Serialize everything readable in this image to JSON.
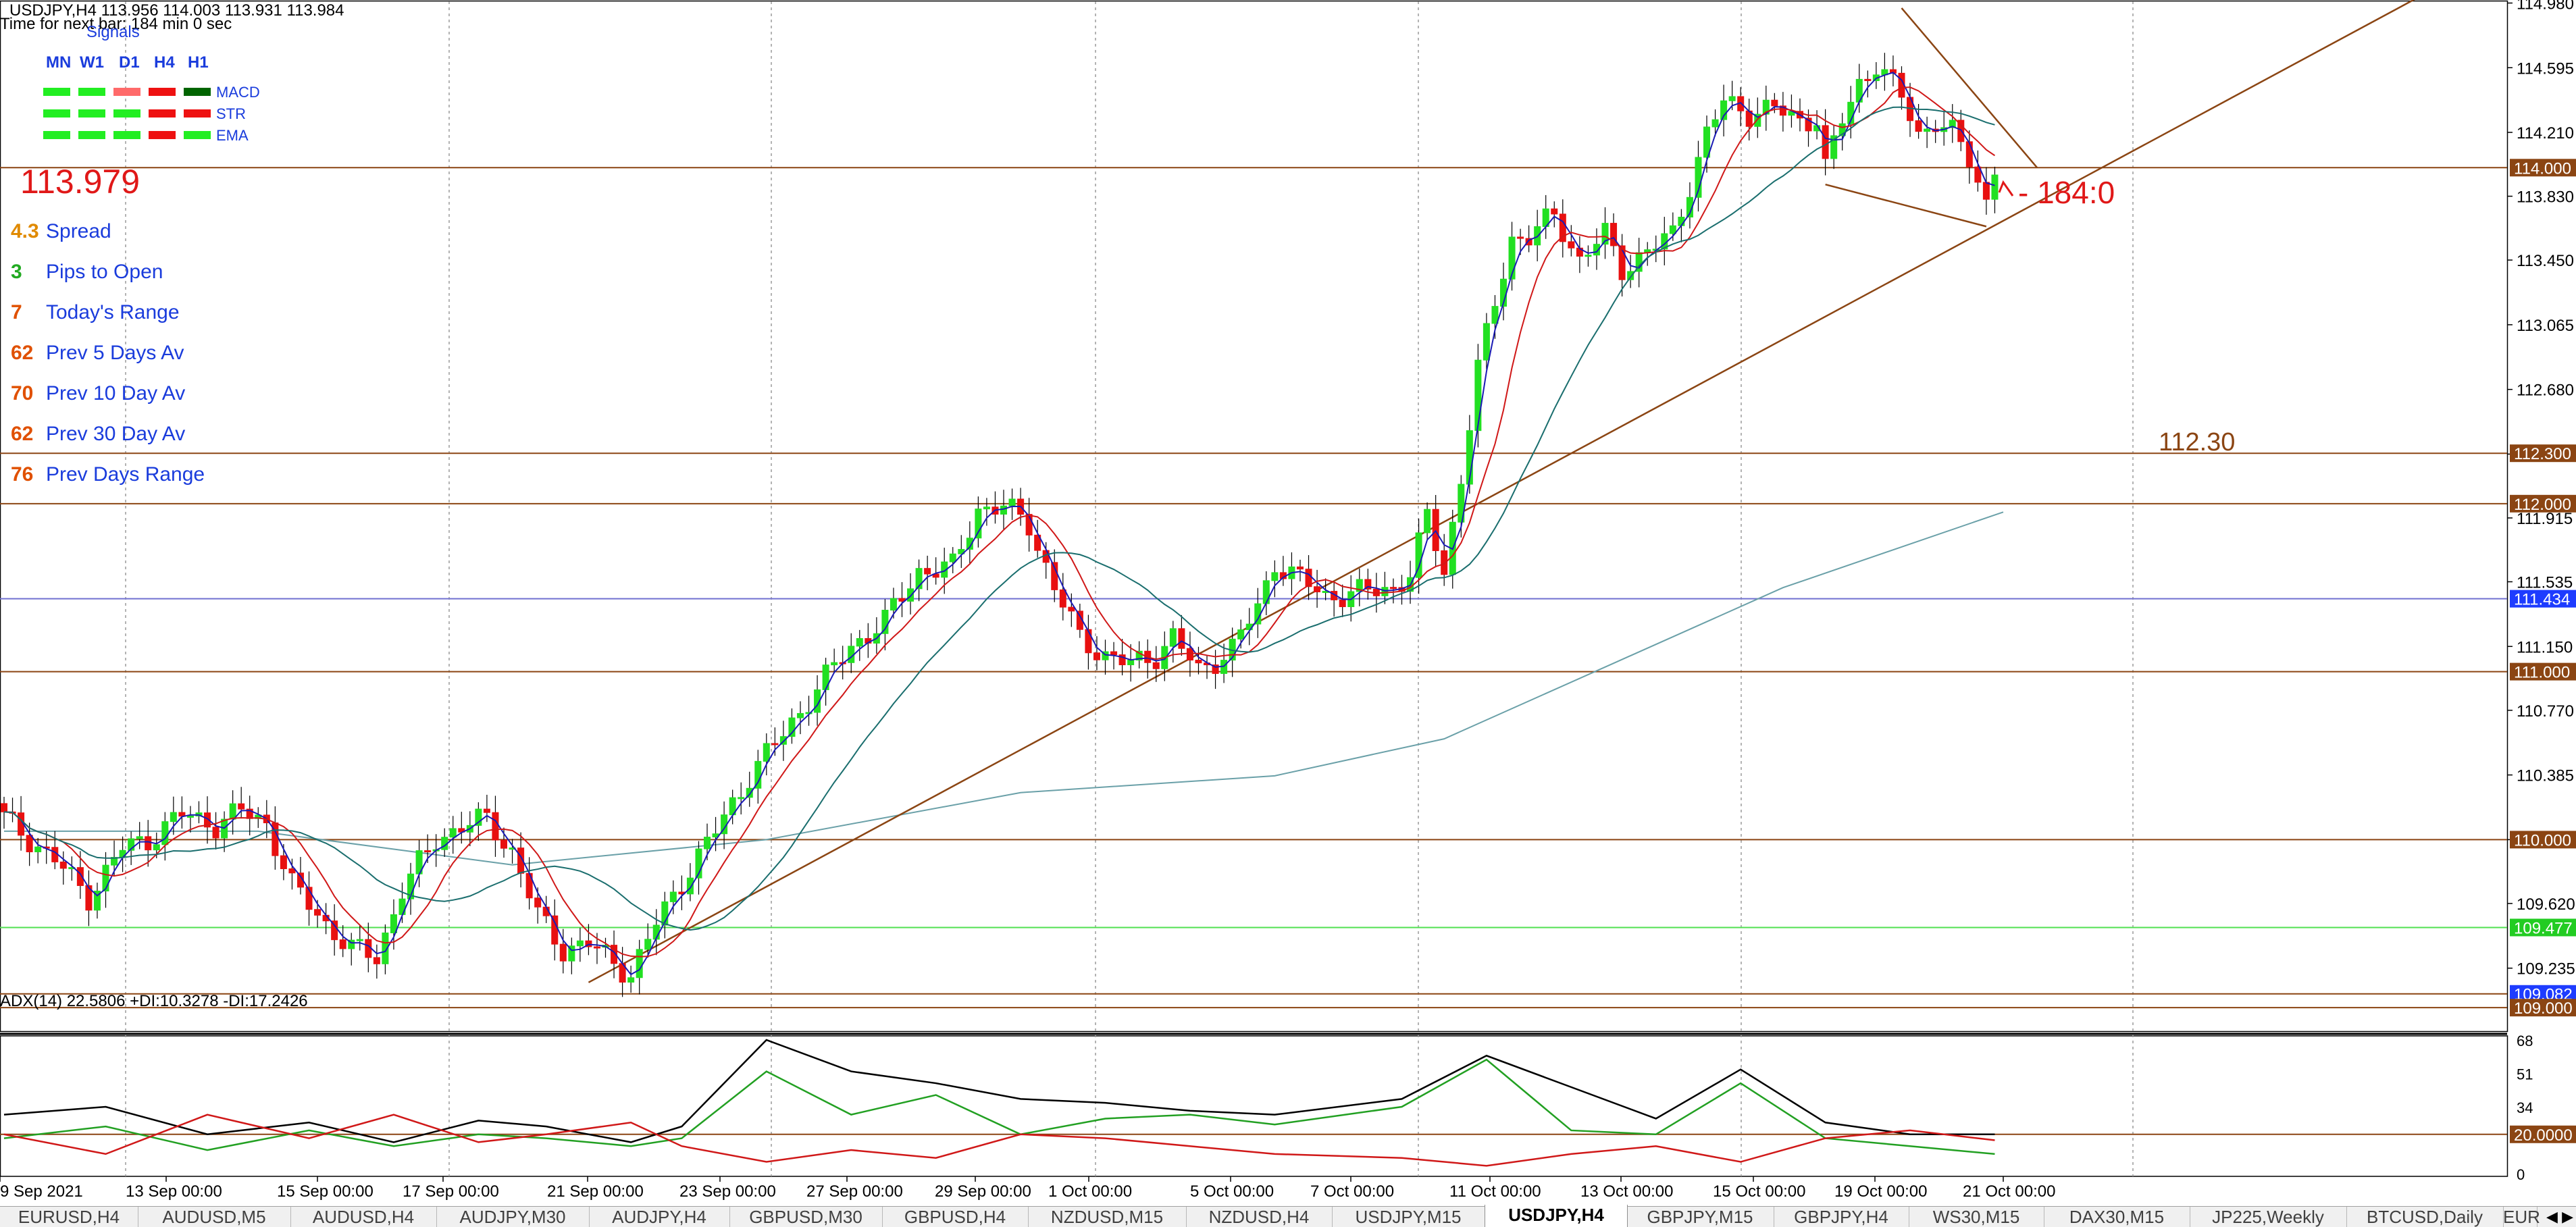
{
  "header": {
    "symbol_line": "USDJPY,H4  113.956 114.003 113.931 113.984",
    "timer": "Time for next bar: 184 min 0 sec"
  },
  "signals": {
    "title": "Signals",
    "timeframes": [
      "MN",
      "W1",
      "D1",
      "H4",
      "H1"
    ],
    "rows": [
      {
        "label": "MACD",
        "colors": [
          "#22ee22",
          "#22ee22",
          "#ff6a6a",
          "#ee1111",
          "#006400"
        ]
      },
      {
        "label": "STR",
        "colors": [
          "#22ee22",
          "#22ee22",
          "#22ee22",
          "#ee1111",
          "#ee1111"
        ]
      },
      {
        "label": "EMA",
        "colors": [
          "#22ee22",
          "#22ee22",
          "#22ee22",
          "#ee1111",
          "#22ee22"
        ]
      }
    ]
  },
  "info_panel": {
    "price": "113.979",
    "rows": [
      {
        "value": "4.3",
        "label": "Spread",
        "value_color": "#e08a00"
      },
      {
        "value": "3",
        "label": "Pips to Open",
        "value_color": "#22aa22"
      },
      {
        "value": "7",
        "label": "Today's Range",
        "value_color": "#e05000"
      },
      {
        "value": "62",
        "label": "Prev 5 Days Av",
        "value_color": "#e05000"
      },
      {
        "value": "70",
        "label": "Prev 10 Day Av",
        "value_color": "#e05000"
      },
      {
        "value": "62",
        "label": "Prev 30 Day Av",
        "value_color": "#e05000"
      },
      {
        "value": "76",
        "label": "Prev Days Range",
        "value_color": "#e05000"
      }
    ]
  },
  "annotations": {
    "countdown": "- 184:0",
    "level_label": "112.30"
  },
  "chart_data": {
    "type": "candlestick",
    "symbol": "USDJPY",
    "timeframe": "H4",
    "ylim": [
      108.88,
      114.99
    ],
    "price_ticks": [
      "114.980",
      "114.595",
      "114.210",
      "113.830",
      "113.450",
      "113.065",
      "112.680",
      "112.295",
      "111.915",
      "111.535",
      "111.150",
      "110.770",
      "110.385",
      "110.000",
      "109.620",
      "109.235"
    ],
    "x_labels": [
      "9 Sep 2021",
      "13 Sep 00:00",
      "15 Sep 00:00",
      "17 Sep 00:00",
      "21 Sep 00:00",
      "23 Sep 00:00",
      "27 Sep 00:00",
      "29 Sep 00:00",
      "1 Oct 00:00",
      "5 Oct 00:00",
      "7 Oct 00:00",
      "11 Oct 00:00",
      "13 Oct 00:00",
      "15 Oct 00:00",
      "19 Oct 00:00",
      "21 Oct 00:00"
    ],
    "close_path": [
      [
        0,
        110.13
      ],
      [
        6,
        109.88
      ],
      [
        10,
        109.66
      ],
      [
        14,
        109.95
      ],
      [
        17,
        110.0
      ],
      [
        21,
        110.15
      ],
      [
        25,
        110.09
      ],
      [
        28,
        110.17
      ],
      [
        31,
        110.1
      ],
      [
        34,
        109.73
      ],
      [
        38,
        109.5
      ],
      [
        41,
        109.35
      ],
      [
        44,
        109.3
      ],
      [
        47,
        109.7
      ],
      [
        51,
        110.0
      ],
      [
        54,
        110.08
      ],
      [
        57,
        110.12
      ],
      [
        60,
        109.93
      ],
      [
        63,
        109.55
      ],
      [
        66,
        109.35
      ],
      [
        69,
        109.38
      ],
      [
        72,
        109.27
      ],
      [
        74,
        109.2
      ],
      [
        77,
        109.5
      ],
      [
        80,
        109.75
      ],
      [
        84,
        110.05
      ],
      [
        88,
        110.38
      ],
      [
        92,
        110.63
      ],
      [
        96,
        110.9
      ],
      [
        100,
        111.15
      ],
      [
        104,
        111.3
      ],
      [
        108,
        111.6
      ],
      [
        112,
        111.62
      ],
      [
        115,
        111.97
      ],
      [
        118,
        111.98
      ],
      [
        121,
        111.88
      ],
      [
        124,
        111.5
      ],
      [
        127,
        111.2
      ],
      [
        130,
        111.1
      ],
      [
        133,
        111.04
      ],
      [
        136,
        111.1
      ],
      [
        138,
        111.21
      ],
      [
        141,
        111.0
      ],
      [
        145,
        111.14
      ],
      [
        148,
        111.38
      ],
      [
        150,
        111.65
      ],
      [
        153,
        111.55
      ],
      [
        156,
        111.45
      ],
      [
        160,
        111.47
      ],
      [
        164,
        111.5
      ],
      [
        166,
        111.58
      ],
      [
        168,
        111.92
      ],
      [
        170,
        111.6
      ],
      [
        172,
        112.15
      ],
      [
        174,
        112.8
      ],
      [
        176,
        113.2
      ],
      [
        178,
        113.58
      ],
      [
        180,
        113.58
      ],
      [
        183,
        113.72
      ],
      [
        186,
        113.45
      ],
      [
        189,
        113.6
      ],
      [
        191,
        113.4
      ],
      [
        194,
        113.5
      ],
      [
        197,
        113.6
      ],
      [
        199,
        113.9
      ],
      [
        201,
        114.2
      ],
      [
        203,
        114.39
      ],
      [
        206,
        114.33
      ],
      [
        209,
        114.35
      ],
      [
        212,
        114.28
      ],
      [
        214,
        114.3
      ],
      [
        215,
        114.0
      ],
      [
        217,
        114.28
      ],
      [
        219,
        114.5
      ],
      [
        221,
        114.62
      ],
      [
        224,
        114.42
      ],
      [
        226,
        114.2
      ],
      [
        228,
        114.28
      ],
      [
        230,
        114.2
      ],
      [
        232,
        114.05
      ],
      [
        234,
        113.8
      ],
      [
        235,
        114.0
      ]
    ],
    "moving_averages": [
      {
        "name": "MA fast",
        "color": "#1a1ab4",
        "period": 3
      },
      {
        "name": "MA medium",
        "color": "#d01818",
        "period": 8
      },
      {
        "name": "MA slow",
        "color": "#1a6e6e",
        "period": 21
      },
      {
        "name": "MA long",
        "color": "#6aa0a8",
        "points": [
          [
            0,
            110.05
          ],
          [
            30,
            110.05
          ],
          [
            60,
            109.85
          ],
          [
            90,
            110.0
          ],
          [
            120,
            110.28
          ],
          [
            150,
            110.38
          ],
          [
            170,
            110.6
          ],
          [
            190,
            111.05
          ],
          [
            210,
            111.5
          ],
          [
            236,
            111.95
          ]
        ]
      }
    ],
    "horizontal_levels": [
      {
        "label": "114.000",
        "value": 114.0,
        "color": "#8b4513",
        "label_color": "#ffffff",
        "label_bg": "#8b4513"
      },
      {
        "label": "112.300",
        "value": 112.3,
        "color": "#8b4513",
        "label_color": "#ffffff",
        "label_bg": "#8b4513"
      },
      {
        "label": "112.000",
        "value": 112.0,
        "color": "#8b4513",
        "label_color": "#ffffff",
        "label_bg": "#8b4513"
      },
      {
        "label": "111.434",
        "value": 111.434,
        "color": "#7070d0",
        "label_color": "#ffffff",
        "label_bg": "#1e3cff"
      },
      {
        "label": "111.000",
        "value": 111.0,
        "color": "#8b4513",
        "label_color": "#ffffff",
        "label_bg": "#8b4513"
      },
      {
        "label": "110.000",
        "value": 110.0,
        "color": "#8b4513",
        "label_color": "#ffffff",
        "label_bg": "#8b4513"
      },
      {
        "label": "109.477",
        "value": 109.477,
        "color": "#50e050",
        "label_color": "#ffffff",
        "label_bg": "#22cc22"
      },
      {
        "label": "109.082",
        "value": 109.082,
        "color": "#8b4513",
        "label_color": "#ffffff",
        "label_bg": "#1e3cff"
      },
      {
        "label": "109.000",
        "value": 109.0,
        "color": "#8b4513",
        "label_color": "#ffffff",
        "label_bg": "#8b4513"
      }
    ],
    "trendlines": [
      {
        "from": [
          69,
          109.15
        ],
        "to": [
          290,
          115.15
        ],
        "color": "#8b4513"
      },
      {
        "from": [
          224,
          114.95
        ],
        "to": [
          240,
          114.0
        ],
        "color": "#8b4513"
      },
      {
        "from": [
          215,
          113.9
        ],
        "to": [
          234,
          113.65
        ],
        "color": "#8b4513"
      }
    ],
    "indicator": {
      "label": "ADX(14) 22.5806 +DI:10.3278 -DI:17.2426",
      "ylim": [
        0,
        68
      ],
      "ticks": [
        "68",
        "51",
        "34",
        "20.0000",
        "0"
      ],
      "level_value": 20,
      "series": [
        {
          "name": "ADX",
          "color": "#000000",
          "points": [
            [
              0,
              30
            ],
            [
              12,
              34
            ],
            [
              24,
              20
            ],
            [
              36,
              26
            ],
            [
              46,
              16
            ],
            [
              56,
              27
            ],
            [
              64,
              24
            ],
            [
              74,
              16
            ],
            [
              80,
              24
            ],
            [
              90,
              68
            ],
            [
              100,
              52
            ],
            [
              110,
              46
            ],
            [
              120,
              38
            ],
            [
              130,
              36
            ],
            [
              140,
              32
            ],
            [
              150,
              30
            ],
            [
              165,
              38
            ],
            [
              175,
              60
            ],
            [
              185,
              44
            ],
            [
              195,
              28
            ],
            [
              205,
              53
            ],
            [
              215,
              26
            ],
            [
              225,
              20
            ],
            [
              235,
              20
            ]
          ]
        },
        {
          "name": "+DI",
          "color": "#22a022",
          "points": [
            [
              0,
              18
            ],
            [
              12,
              24
            ],
            [
              24,
              12
            ],
            [
              36,
              22
            ],
            [
              46,
              14
            ],
            [
              56,
              20
            ],
            [
              64,
              18
            ],
            [
              74,
              14
            ],
            [
              80,
              18
            ],
            [
              90,
              52
            ],
            [
              100,
              30
            ],
            [
              110,
              40
            ],
            [
              120,
              20
            ],
            [
              130,
              28
            ],
            [
              140,
              30
            ],
            [
              150,
              25
            ],
            [
              165,
              34
            ],
            [
              175,
              58
            ],
            [
              185,
              22
            ],
            [
              195,
              20
            ],
            [
              205,
              46
            ],
            [
              215,
              18
            ],
            [
              225,
              14
            ],
            [
              235,
              10
            ]
          ]
        },
        {
          "name": "-DI",
          "color": "#d01818",
          "points": [
            [
              0,
              20
            ],
            [
              12,
              10
            ],
            [
              24,
              30
            ],
            [
              36,
              18
            ],
            [
              46,
              30
            ],
            [
              56,
              16
            ],
            [
              64,
              20
            ],
            [
              74,
              26
            ],
            [
              80,
              14
            ],
            [
              90,
              6
            ],
            [
              100,
              12
            ],
            [
              110,
              8
            ],
            [
              120,
              20
            ],
            [
              130,
              18
            ],
            [
              140,
              14
            ],
            [
              150,
              10
            ],
            [
              165,
              8
            ],
            [
              175,
              4
            ],
            [
              185,
              10
            ],
            [
              195,
              14
            ],
            [
              205,
              6
            ],
            [
              215,
              18
            ],
            [
              225,
              22
            ],
            [
              235,
              17
            ]
          ]
        }
      ]
    }
  },
  "tabs": [
    "EURUSD,H4",
    "AUDUSD,M5",
    "AUDUSD,H4",
    "AUDJPY,M30",
    "AUDJPY,H4",
    "GBPUSD,M30",
    "GBPUSD,H4",
    "NZDUSD,M15",
    "NZDUSD,H4",
    "USDJPY,M15",
    "USDJPY,H4",
    "GBPJPY,M15",
    "GBPJPY,H4",
    "WS30,M15",
    "DAX30,M15",
    "JP225,Weekly",
    "BTCUSD,Daily",
    "EUR"
  ],
  "active_tab": "USDJPY,H4",
  "tab_scroll": "◀ ▶"
}
